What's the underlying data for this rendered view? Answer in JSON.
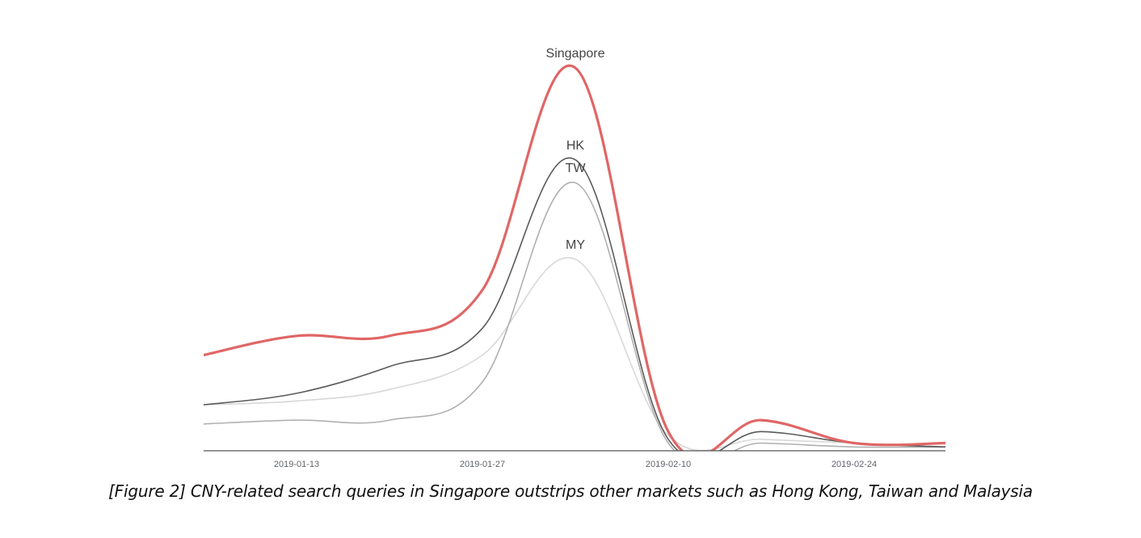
{
  "caption": "[Figure 2] CNY-related search queries in Singapore outstrips other markets such as Hong Kong, Taiwan and Malaysia",
  "chart_data": {
    "type": "line",
    "title": "",
    "xlabel": "",
    "ylabel": "",
    "x_ticks": [
      "2019-01-13",
      "2019-01-27",
      "2019-02-10",
      "2019-02-24"
    ],
    "x": [
      "2019-01-06",
      "2019-01-13",
      "2019-01-20",
      "2019-01-27",
      "2019-02-03",
      "2019-02-10",
      "2019-02-17",
      "2019-02-24",
      "2019-03-03"
    ],
    "grid": false,
    "legend": "inline",
    "series": [
      {
        "name": "Singapore",
        "color": "#e06666",
        "values": [
          25,
          30,
          30,
          42,
          100,
          5,
          8,
          2,
          2
        ]
      },
      {
        "name": "HK",
        "color": "#5a5a5a",
        "values": [
          12,
          15,
          22,
          32,
          76,
          3,
          5,
          2,
          1
        ]
      },
      {
        "name": "TW",
        "color": "#b0b0b0",
        "values": [
          7,
          8,
          8,
          18,
          70,
          2,
          2,
          1,
          1
        ]
      },
      {
        "name": "MY",
        "color": "#d8d8d8",
        "values": [
          12,
          13,
          16,
          25,
          50,
          4,
          3,
          2,
          1
        ]
      }
    ]
  }
}
